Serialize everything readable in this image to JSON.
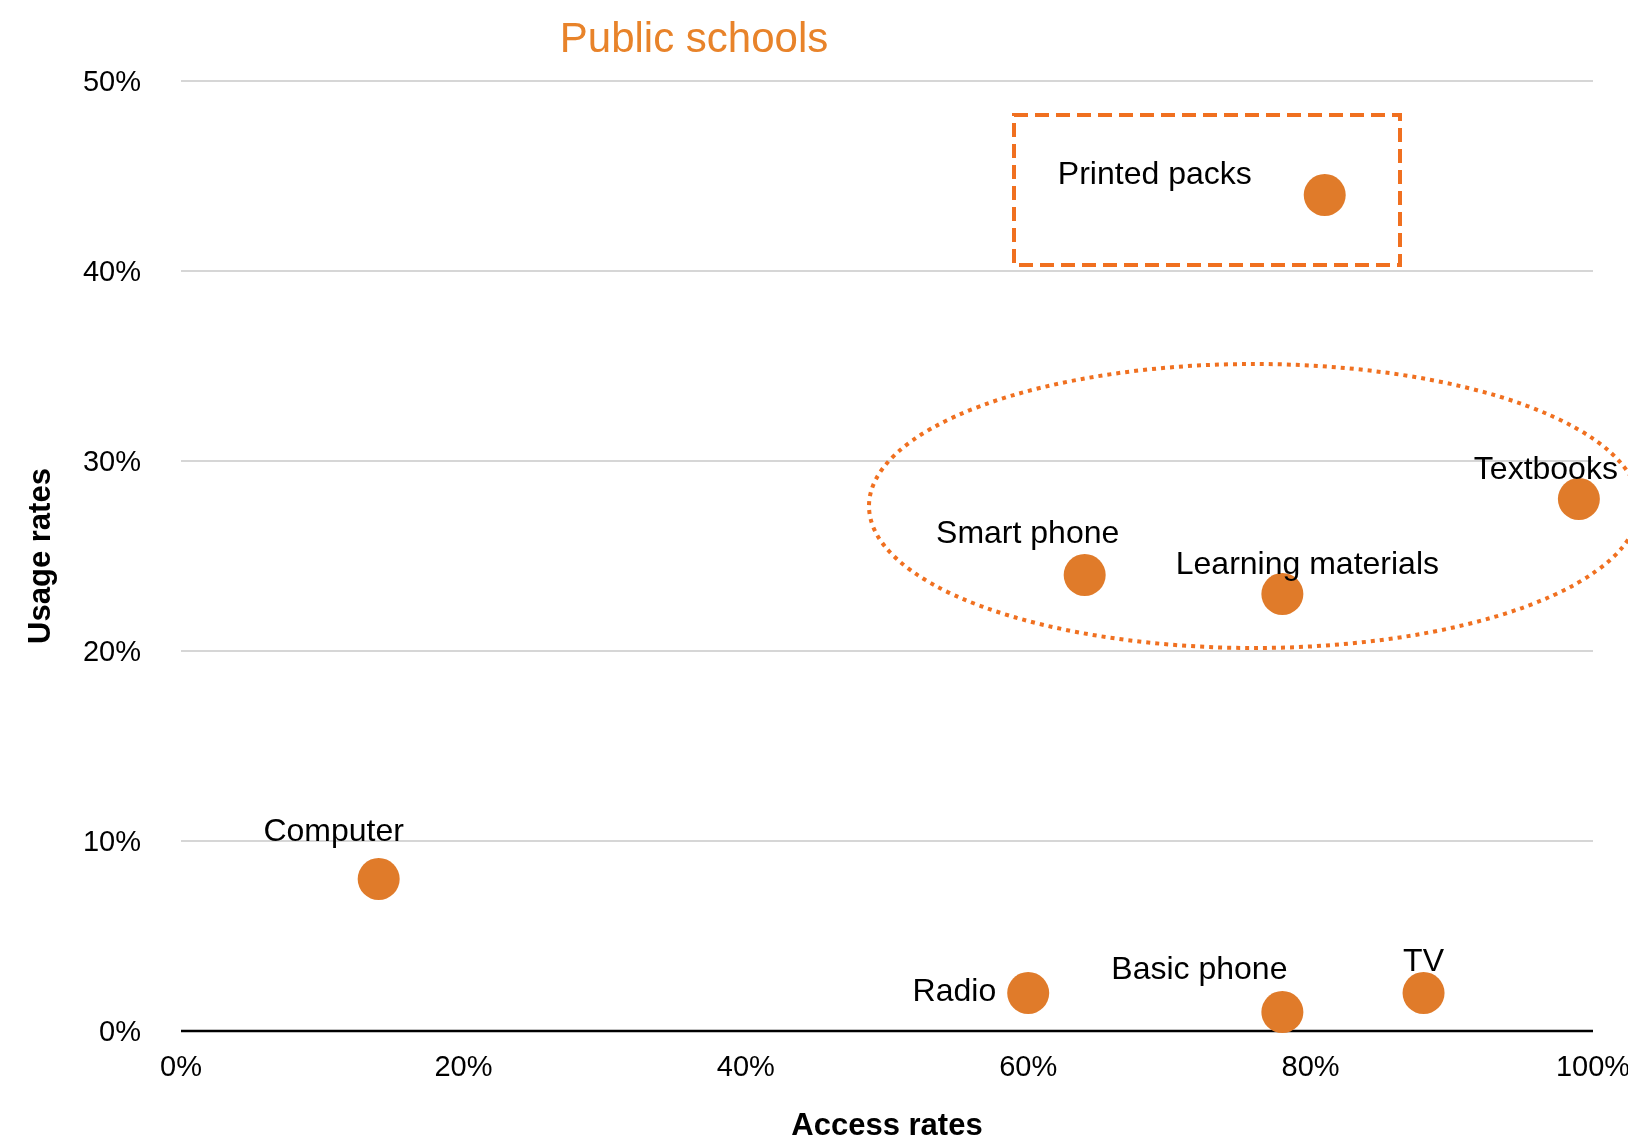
{
  "chart_data": {
    "type": "scatter",
    "title": "Public schools",
    "xlabel": "Access rates",
    "ylabel": "Usage rates",
    "x": [
      14,
      60,
      78,
      88,
      64,
      78,
      99,
      81
    ],
    "values": [
      8,
      2,
      1,
      2,
      24,
      23,
      28,
      44
    ],
    "color": "#e07b2a",
    "marker": "circle",
    "grid": "y",
    "xlim": [
      0,
      100
    ],
    "ylim": [
      0,
      50
    ],
    "xticks": [
      {
        "value": 0,
        "label": "0%"
      },
      {
        "value": 20,
        "label": "20%"
      },
      {
        "value": 40,
        "label": "40%"
      },
      {
        "value": 60,
        "label": "60%"
      },
      {
        "value": 80,
        "label": "80%"
      },
      {
        "value": 100,
        "label": "100%"
      }
    ],
    "yticks": [
      {
        "value": 0,
        "label": "0%"
      },
      {
        "value": 10,
        "label": "10%"
      },
      {
        "value": 20,
        "label": "20%"
      },
      {
        "value": 30,
        "label": "30%"
      },
      {
        "value": 40,
        "label": "40%"
      },
      {
        "value": 50,
        "label": "50%"
      }
    ],
    "annotations": [
      {
        "text": "Computer",
        "x": 14,
        "y": 8
      },
      {
        "text": "Radio",
        "x": 60,
        "y": 2
      },
      {
        "text": "Basic phone",
        "x": 78,
        "y": 1
      },
      {
        "text": "TV",
        "x": 88,
        "y": 2
      },
      {
        "text": "Smart phone",
        "x": 64,
        "y": 24
      },
      {
        "text": "Learning materials",
        "x": 78,
        "y": 23
      },
      {
        "text": "Textbooks",
        "x": 99,
        "y": 28
      },
      {
        "text": "Printed packs",
        "x": 81,
        "y": 44
      }
    ]
  }
}
